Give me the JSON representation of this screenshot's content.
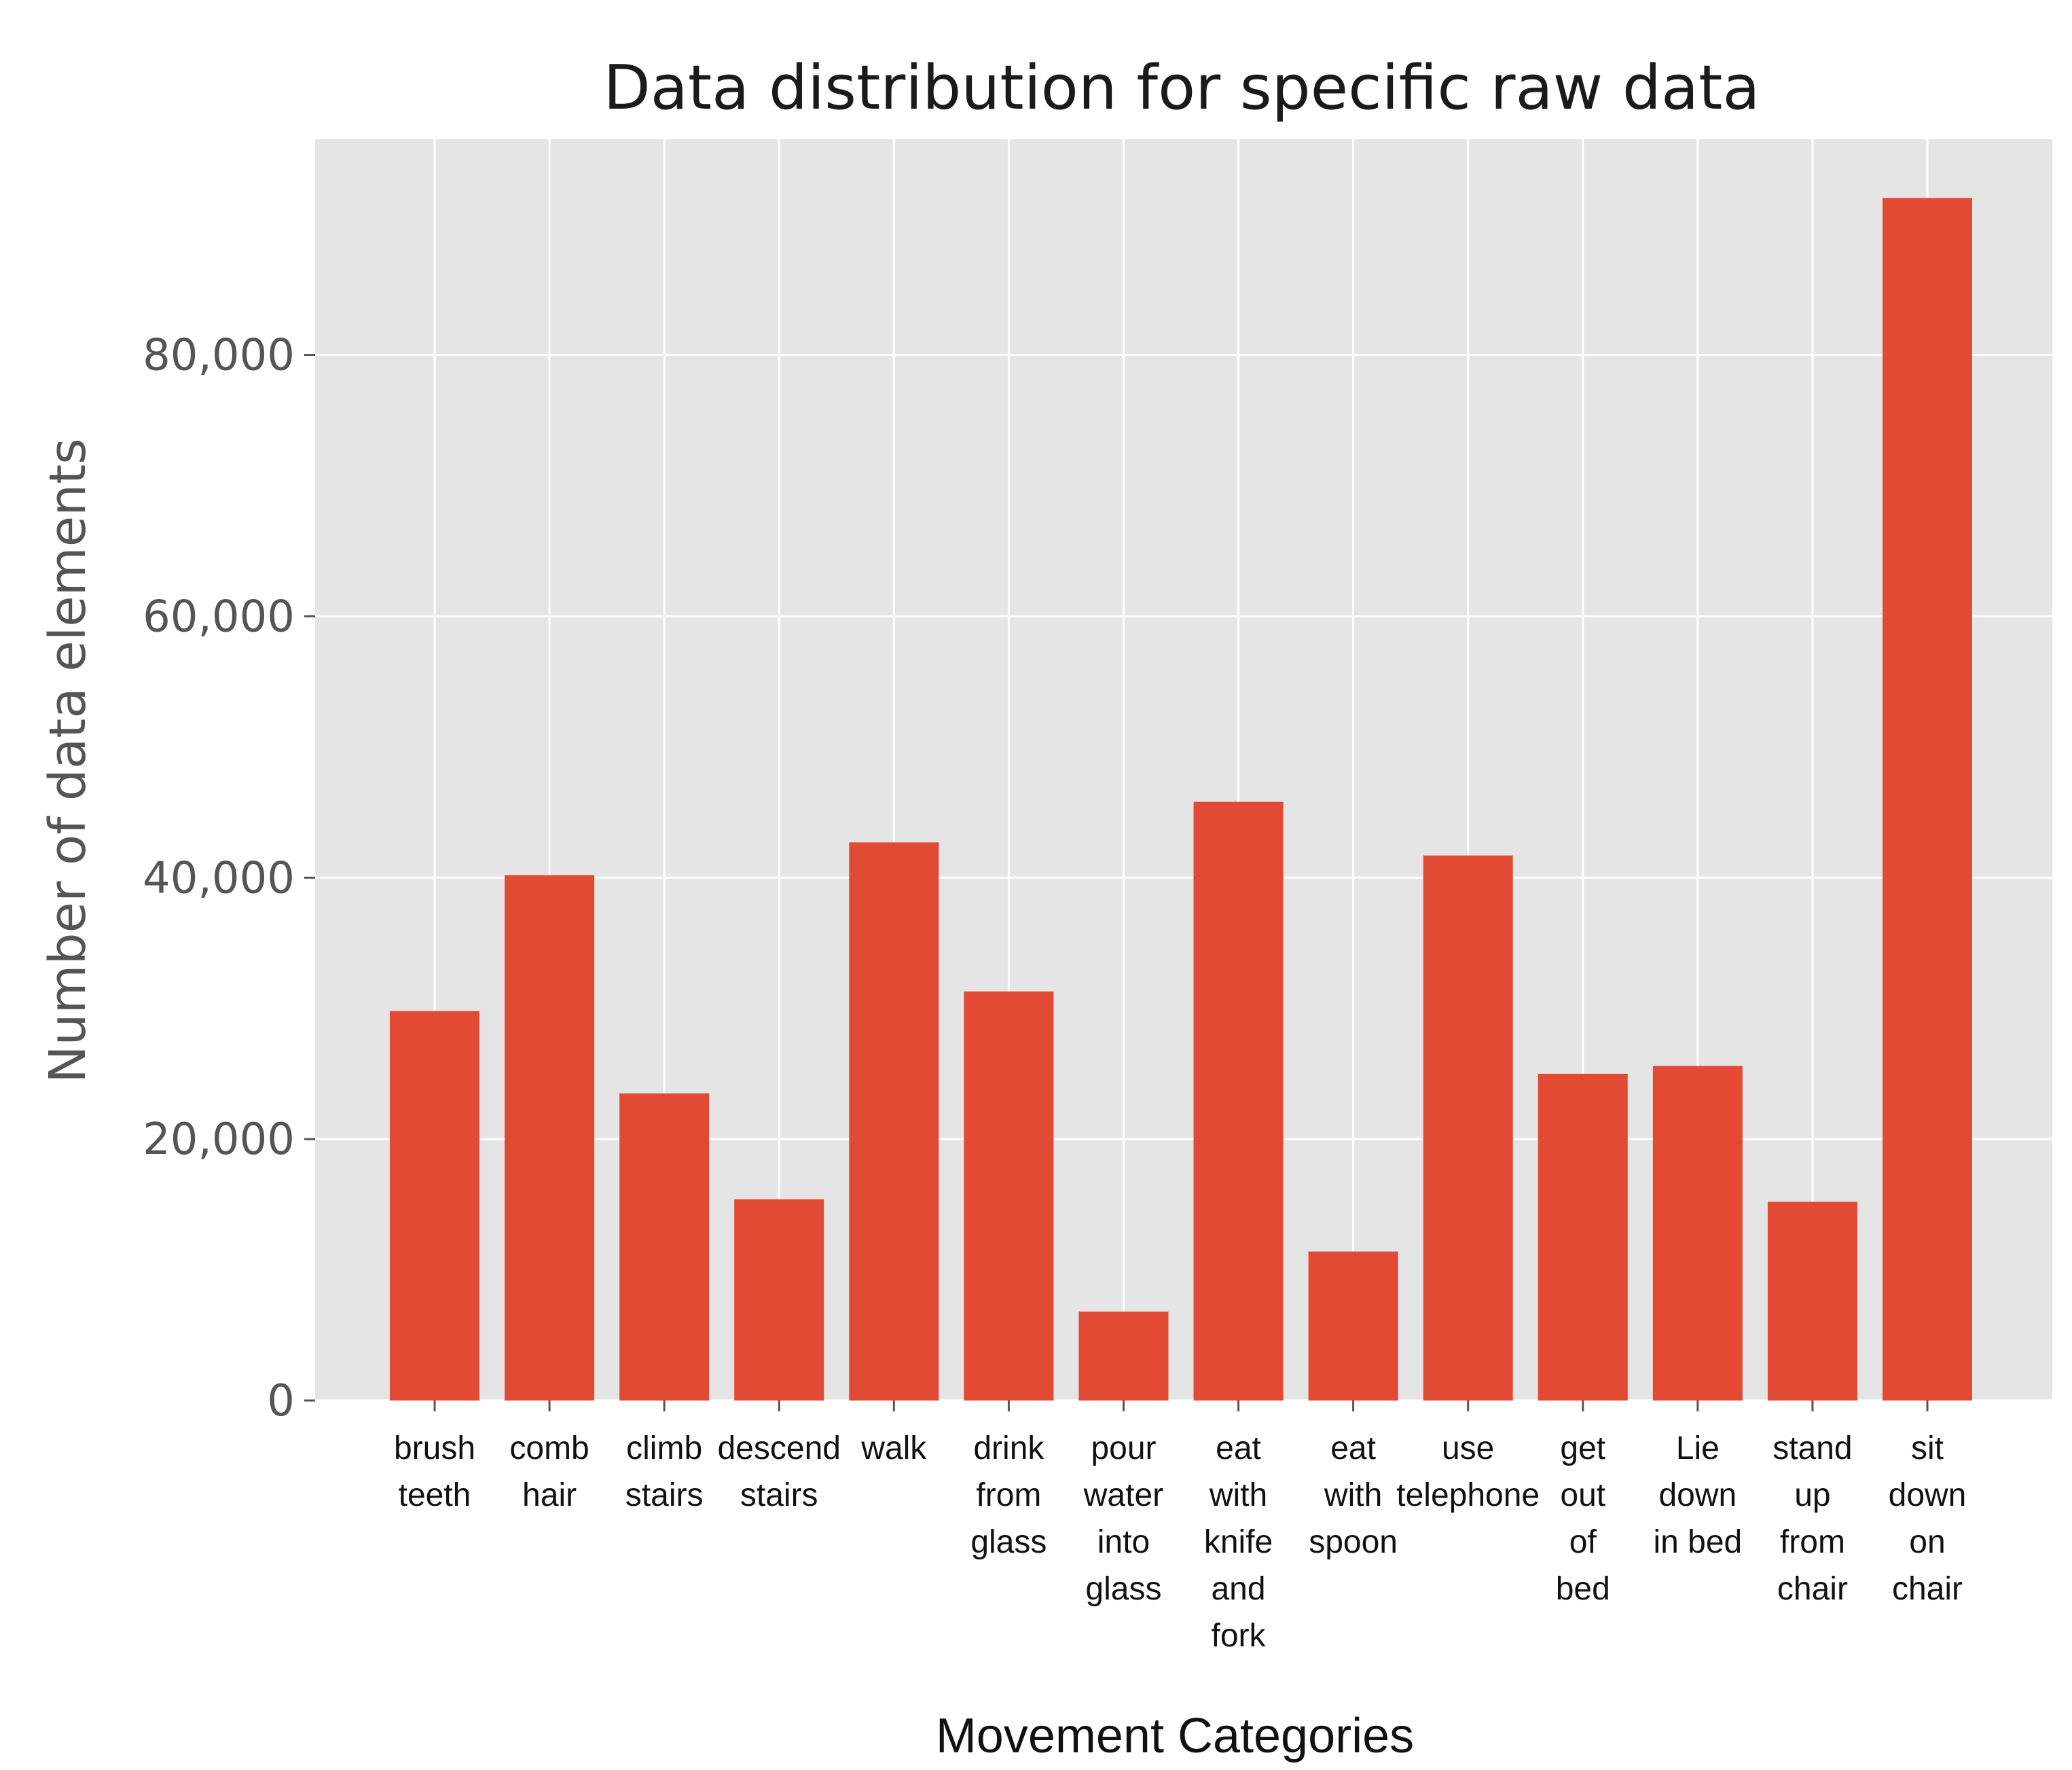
{
  "chart_data": {
    "type": "bar",
    "title": "Data distribution for specific raw data",
    "xlabel": "Movement Categories",
    "ylabel": "Number of data elements",
    "ylim": [
      0,
      96500
    ],
    "yticks": [
      0,
      20000,
      40000,
      60000,
      80000
    ],
    "ytick_labels": [
      "0",
      "20,000",
      "40,000",
      "60,000",
      "80,000"
    ],
    "grid": true,
    "categories": [
      "brush teeth",
      "comb hair",
      "climb stairs",
      "descend stairs",
      "walk",
      "drink from glass",
      "pour water into glass",
      "eat with knife and fork",
      "eat with spoon",
      "use telephone",
      "get out of bed",
      "Lie down in bed",
      "stand up from chair",
      "sit down on chair"
    ],
    "category_label_lines": [
      [
        "brush",
        "teeth"
      ],
      [
        "comb",
        "hair"
      ],
      [
        "climb",
        "stairs"
      ],
      [
        "descend",
        "stairs"
      ],
      [
        "walk"
      ],
      [
        "drink",
        "from",
        "glass"
      ],
      [
        "pour",
        "water",
        "into",
        "glass"
      ],
      [
        "eat",
        "with",
        "knife",
        "and",
        "fork"
      ],
      [
        "eat",
        "with",
        "spoon"
      ],
      [
        "use",
        "telephone"
      ],
      [
        "get",
        "out",
        "of",
        "bed"
      ],
      [
        "Lie",
        "down",
        "in bed"
      ],
      [
        "stand",
        "up",
        "from",
        "chair"
      ],
      [
        "sit",
        "down",
        "on",
        "chair"
      ]
    ],
    "values": [
      29800,
      40200,
      23500,
      15400,
      42700,
      31300,
      6800,
      45800,
      11400,
      41700,
      25000,
      25600,
      15200,
      92000
    ],
    "colors": {
      "bar": "#e24a33",
      "plot_background": "#e5e5e5",
      "grid": "#ffffff",
      "tick": "#555555"
    }
  }
}
